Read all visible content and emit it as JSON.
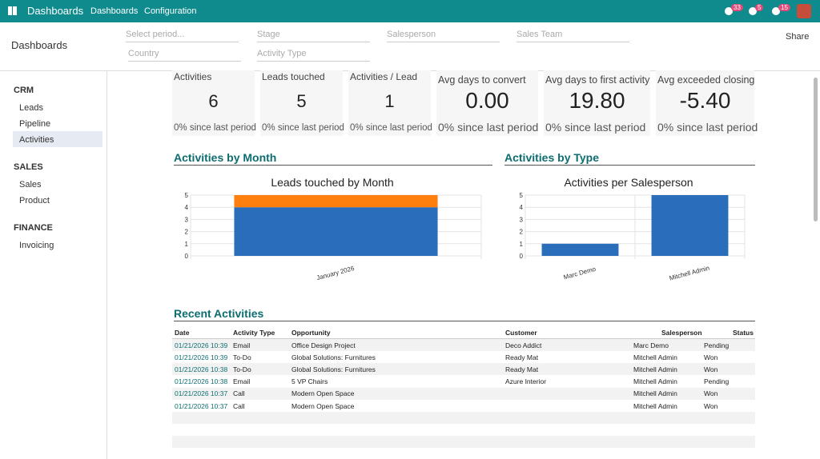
{
  "navbar": {
    "app": "Dashboards",
    "menus": [
      "Dashboards",
      "Configuration"
    ],
    "badges": [
      "33",
      "5",
      "15"
    ]
  },
  "control_panel": {
    "title": "Dashboards",
    "filters": [
      "Select period...",
      "Stage",
      "Salesperson",
      "Sales Team",
      "Country",
      "Activity Type"
    ],
    "share": "Share"
  },
  "sidebar": [
    {
      "section": "CRM",
      "items": [
        "Leads",
        "Pipeline",
        "Activities"
      ]
    },
    {
      "section": "SALES",
      "items": [
        "Sales",
        "Product"
      ]
    },
    {
      "section": "FINANCE",
      "items": [
        "Invoicing"
      ]
    }
  ],
  "kpis": [
    {
      "label": "Activities",
      "value": "6",
      "delta": "0% since last period"
    },
    {
      "label": "Leads touched",
      "value": "5",
      "delta": "0% since last period"
    },
    {
      "label": "Activities / Lead",
      "value": "1",
      "delta": "0% since last period"
    },
    {
      "label": "Avg days to convert",
      "value": "0.00",
      "delta": "0% since last period"
    },
    {
      "label": "Avg days to first activity",
      "value": "19.80",
      "delta": "0% since last period"
    },
    {
      "label": "Avg exceeded closing",
      "value": "-5.40",
      "delta": "0% since last period"
    }
  ],
  "sections": [
    "Activities by Month",
    "Activities by Type",
    "Recent Activities"
  ],
  "charts": [
    {
      "type": "bar",
      "stacked": true,
      "title": "Leads touched by Month",
      "categories": [
        "January 2026"
      ],
      "series": [
        {
          "color": "#2a6ebb",
          "values": [
            4
          ]
        },
        {
          "color": "#ff7f0e",
          "values": [
            1
          ]
        }
      ],
      "ylim": [
        0,
        5
      ],
      "yticks": [
        0,
        1,
        2,
        3,
        4,
        5
      ]
    },
    {
      "type": "bar",
      "title": "Activities per Salesperson",
      "categories": [
        "Marc Demo",
        "Mitchell Admin"
      ],
      "series": [
        {
          "color": "#2a6ebb",
          "values": [
            1,
            5
          ]
        }
      ],
      "ylim": [
        0,
        5
      ],
      "yticks": [
        0,
        1,
        2,
        3,
        4,
        5
      ]
    }
  ],
  "table": {
    "columns": [
      "Date",
      "Activity Type",
      "Opportunity",
      "Customer",
      "Salesperson",
      "Status"
    ],
    "rows": [
      [
        "01/21/2026 10:39",
        "Email",
        "Office Design Project",
        "Deco Addict",
        "Marc Demo",
        "Pending"
      ],
      [
        "01/21/2026 10:39",
        "To-Do",
        "Global Solutions: Furnitures",
        "Ready Mat",
        "Mitchell Admin",
        "Won"
      ],
      [
        "01/21/2026 10:38",
        "To-Do",
        "Global Solutions: Furnitures",
        "Ready Mat",
        "Mitchell Admin",
        "Won"
      ],
      [
        "01/21/2026 10:38",
        "Email",
        "5 VP Chairs",
        "Azure Interior",
        "Mitchell Admin",
        "Pending"
      ],
      [
        "01/21/2026 10:37",
        "Call",
        "Modern Open Space",
        null,
        "Mitchell Admin",
        "Won"
      ],
      [
        "01/21/2026 10:37",
        "Call",
        "Modern Open Space",
        null,
        "Mitchell Admin",
        "Won"
      ]
    ]
  }
}
